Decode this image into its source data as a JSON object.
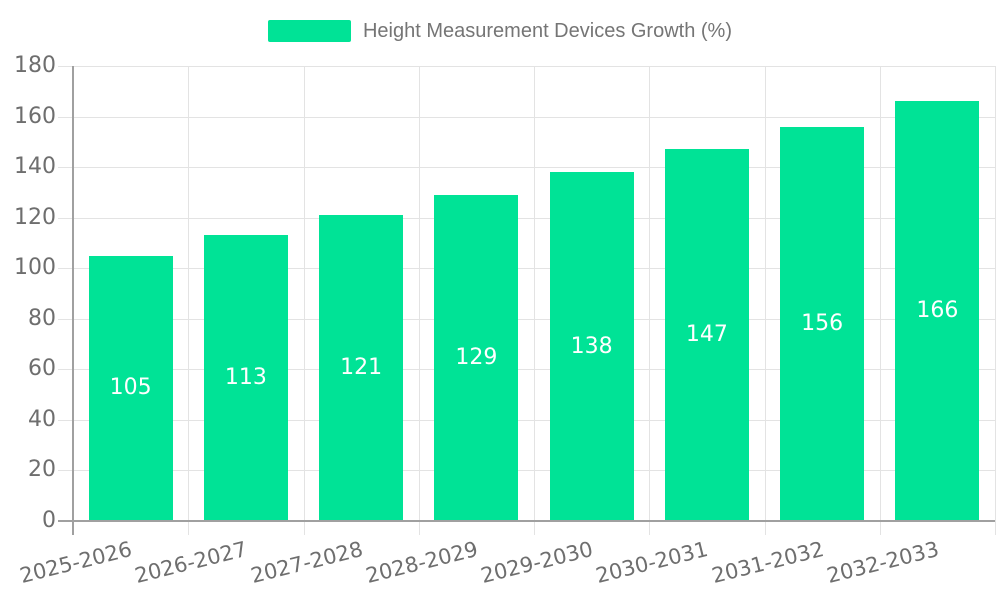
{
  "chart_data": {
    "type": "bar",
    "title": "Height Measurement Devices Growth (%)",
    "categories": [
      "2025-2026",
      "2026-2027",
      "2027-2028",
      "2028-2029",
      "2029-2030",
      "2030-2031",
      "2031-2032",
      "2032-2033"
    ],
    "values": [
      105,
      113,
      121,
      129,
      138,
      147,
      156,
      166
    ],
    "xlabel": "",
    "ylabel": "",
    "ylim": [
      0,
      180
    ],
    "ytick_step": 20,
    "ytick_labels": [
      "0",
      "20",
      "40",
      "60",
      "80",
      "100",
      "120",
      "140",
      "160",
      "180"
    ],
    "grid": true,
    "legend_position": "top-center",
    "bar_value_labels": true,
    "colors": {
      "bar": "#00E396",
      "grid": "#E3E3E3",
      "axis": "#A0A0A0",
      "tick_label": "#6E6E6E",
      "title": "#757575",
      "bar_label": "#FFFFFF",
      "background": "#FFFFFF"
    }
  }
}
